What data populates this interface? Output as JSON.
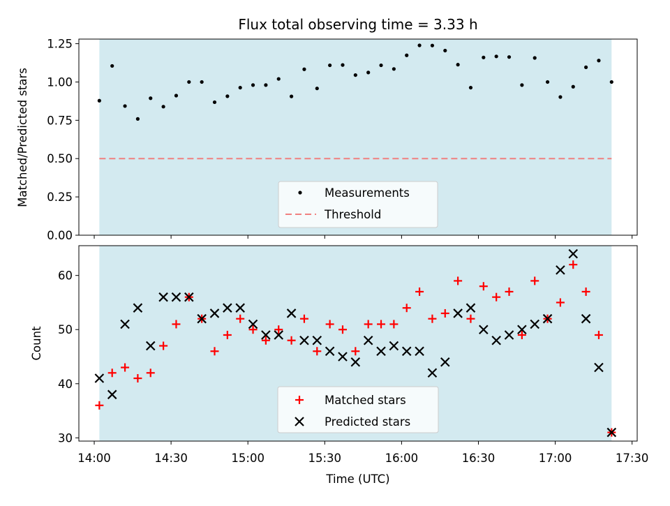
{
  "colors": {
    "shade": "#d3eaf0",
    "measurement": "#000000",
    "threshold": "#f08080",
    "matched": "#ff0000",
    "predicted": "#000000"
  },
  "chart_data": [
    {
      "type": "scatter",
      "title": "Flux total observing time = 3.33 h",
      "xlabel": "",
      "ylabel": "Matched/Predicted stars",
      "xlim": [
        "13:54",
        "17:32"
      ],
      "ylim": [
        0.0,
        1.28
      ],
      "yticks": [
        0.0,
        0.25,
        0.5,
        0.75,
        1.0,
        1.25
      ],
      "ytick_labels": [
        "0.00",
        "0.25",
        "0.50",
        "0.75",
        "1.00",
        "1.25"
      ],
      "shaded_span": [
        "14:02",
        "17:22"
      ],
      "threshold": 0.5,
      "legend": [
        "Measurements",
        "Threshold"
      ],
      "legend_position": "lower center",
      "series": [
        {
          "name": "Measurements",
          "x": [
            "14:02",
            "14:07",
            "14:12",
            "14:17",
            "14:22",
            "14:27",
            "14:32",
            "14:37",
            "14:42",
            "14:47",
            "14:52",
            "14:57",
            "15:02",
            "15:07",
            "15:12",
            "15:17",
            "15:22",
            "15:27",
            "15:32",
            "15:37",
            "15:42",
            "15:47",
            "15:52",
            "15:57",
            "16:02",
            "16:07",
            "16:12",
            "16:17",
            "16:22",
            "16:27",
            "16:32",
            "16:37",
            "16:42",
            "16:47",
            "16:52",
            "16:57",
            "17:02",
            "17:07",
            "17:12",
            "17:17",
            "17:22"
          ],
          "y": [
            0.878,
            1.105,
            0.843,
            0.759,
            0.894,
            0.839,
            0.911,
            1.0,
            1.0,
            0.868,
            0.907,
            0.963,
            0.98,
            0.98,
            1.02,
            0.906,
            1.083,
            0.958,
            1.109,
            1.111,
            1.045,
            1.062,
            1.109,
            1.085,
            1.174,
            1.239,
            1.238,
            1.205,
            1.113,
            0.963,
            1.16,
            1.167,
            1.163,
            0.98,
            1.157,
            1.0,
            0.902,
            0.969,
            1.096,
            1.14,
            1.0
          ]
        }
      ]
    },
    {
      "type": "scatter",
      "title": "",
      "xlabel": "Time (UTC)",
      "ylabel": "Count",
      "xlim": [
        "13:54",
        "17:32"
      ],
      "ylim": [
        29.4,
        65.5
      ],
      "xticks": [
        "14:00",
        "14:30",
        "15:00",
        "15:30",
        "16:00",
        "16:30",
        "17:00",
        "17:30"
      ],
      "yticks": [
        30,
        40,
        50,
        60
      ],
      "shaded_span": [
        "14:02",
        "17:22"
      ],
      "legend": [
        "Matched stars",
        "Predicted stars"
      ],
      "legend_position": "lower center",
      "series": [
        {
          "name": "Matched stars",
          "x": [
            "14:02",
            "14:07",
            "14:12",
            "14:17",
            "14:22",
            "14:27",
            "14:32",
            "14:37",
            "14:42",
            "14:47",
            "14:52",
            "14:57",
            "15:02",
            "15:07",
            "15:12",
            "15:17",
            "15:22",
            "15:27",
            "15:32",
            "15:37",
            "15:42",
            "15:47",
            "15:52",
            "15:57",
            "16:02",
            "16:07",
            "16:12",
            "16:17",
            "16:22",
            "16:27",
            "16:32",
            "16:37",
            "16:42",
            "16:47",
            "16:52",
            "16:57",
            "17:02",
            "17:07",
            "17:12",
            "17:17",
            "17:22"
          ],
          "y": [
            36,
            42,
            43,
            41,
            42,
            47,
            51,
            56,
            52,
            46,
            49,
            52,
            50,
            48,
            50,
            48,
            52,
            46,
            51,
            50,
            46,
            51,
            51,
            51,
            54,
            57,
            52,
            53,
            59,
            52,
            58,
            56,
            57,
            49,
            59,
            52,
            55,
            62,
            57,
            49,
            31
          ]
        },
        {
          "name": "Predicted stars",
          "x": [
            "14:02",
            "14:07",
            "14:12",
            "14:17",
            "14:22",
            "14:27",
            "14:32",
            "14:37",
            "14:42",
            "14:47",
            "14:52",
            "14:57",
            "15:02",
            "15:07",
            "15:12",
            "15:17",
            "15:22",
            "15:27",
            "15:32",
            "15:37",
            "15:42",
            "15:47",
            "15:52",
            "15:57",
            "16:02",
            "16:07",
            "16:12",
            "16:17",
            "16:22",
            "16:27",
            "16:32",
            "16:37",
            "16:42",
            "16:47",
            "16:52",
            "16:57",
            "17:02",
            "17:07",
            "17:12",
            "17:17",
            "17:22"
          ],
          "y": [
            41,
            38,
            51,
            54,
            47,
            56,
            56,
            56,
            52,
            53,
            54,
            54,
            51,
            49,
            49,
            53,
            48,
            48,
            46,
            45,
            44,
            48,
            46,
            47,
            46,
            46,
            42,
            44,
            53,
            54,
            50,
            48,
            49,
            50,
            51,
            52,
            61,
            64,
            52,
            43,
            31
          ]
        }
      ]
    }
  ]
}
